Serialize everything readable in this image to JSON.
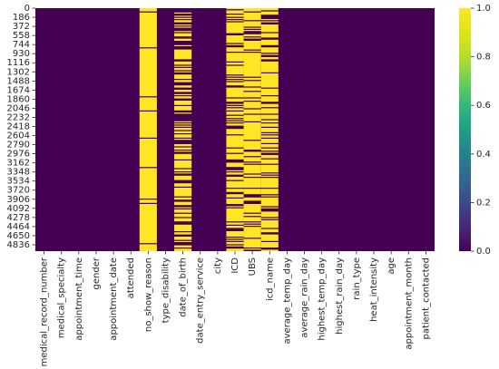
{
  "chart_data": {
    "type": "heatmap",
    "title": "",
    "xlabel": "",
    "ylabel": "",
    "columns": [
      "medical_record_number",
      "medical_specialty",
      "appointment_time",
      "gender",
      "appointment_date",
      "attended",
      "no_show_reason",
      "type_disability",
      "date_of_birth",
      "date_entry_service",
      "city",
      "ICD",
      "UBS",
      "icd_name",
      "average_temp_day",
      "average_rain_day",
      "highest_temp_day",
      "highest_rain_day",
      "rain_type",
      "heat_intensity",
      "age",
      "appointment_month",
      "patient_contacted"
    ],
    "y_tick_labels": [
      "0",
      "186",
      "372",
      "558",
      "744",
      "930",
      "1116",
      "1302",
      "1488",
      "1674",
      "1860",
      "2046",
      "2232",
      "2418",
      "2604",
      "2790",
      "2976",
      "3162",
      "3348",
      "3534",
      "3720",
      "3906",
      "4092",
      "4278",
      "4464",
      "4650",
      "4836"
    ],
    "n_rows": 4967,
    "value_meaning": "1 = missing value, 0 = present",
    "missing_fraction_by_column": {
      "medical_record_number": 0.0,
      "medical_specialty": 0.0,
      "appointment_time": 0.0,
      "gender": 0.0,
      "appointment_date": 0.0,
      "attended": 0.0,
      "no_show_reason": 0.95,
      "type_disability": 0.0,
      "date_of_birth": 0.6,
      "date_entry_service": 0.0,
      "city": 0.0,
      "ICD": 0.75,
      "UBS": 0.75,
      "icd_name": 0.75,
      "average_temp_day": 0.0,
      "average_rain_day": 0.0,
      "highest_temp_day": 0.0,
      "highest_rain_day": 0.0,
      "rain_type": 0.0,
      "heat_intensity": 0.0,
      "age": 0.0,
      "appointment_month": 0.0,
      "patient_contacted": 0.0
    },
    "colorbar": {
      "min": 0.0,
      "max": 1.0,
      "ticks": [
        "0.0",
        "0.2",
        "0.4",
        "0.6",
        "0.8",
        "1.0"
      ],
      "colormap": "viridis"
    },
    "colors": {
      "low": "#440154",
      "high": "#fde725"
    }
  }
}
